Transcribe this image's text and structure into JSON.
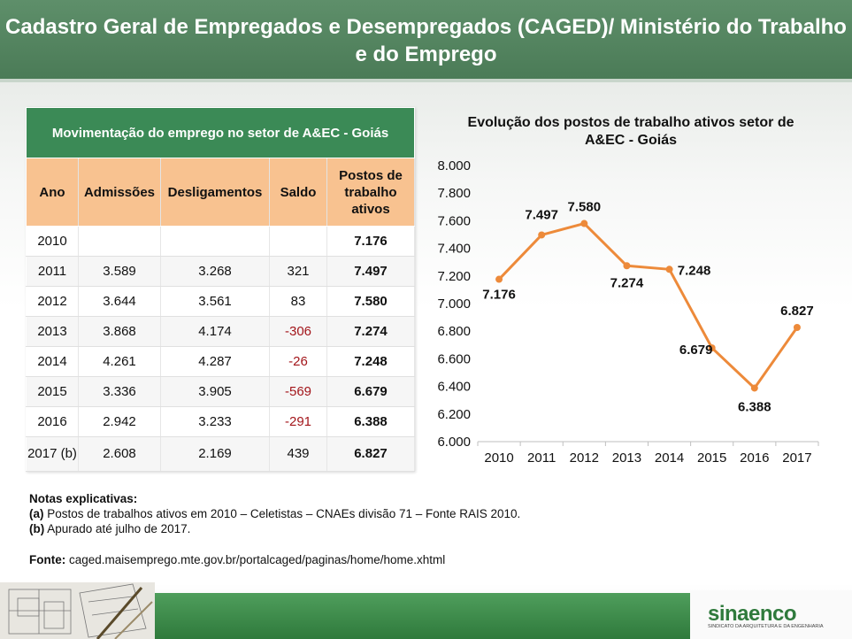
{
  "header": {
    "title": "Cadastro Geral de Empregados e Desempregados (CAGED)/ Ministério do Trabalho e do Emprego"
  },
  "table": {
    "caption": "Movimentação do emprego no setor de A&EC - Goiás",
    "columns": [
      "Ano",
      "Admissões",
      "Desligamentos",
      "Saldo",
      "Postos de trabalho ativos"
    ],
    "rows": [
      {
        "ano": "2010",
        "admissoes": "",
        "desligamentos": "",
        "saldo": "",
        "postos": "7.176"
      },
      {
        "ano": "2011",
        "admissoes": "3.589",
        "desligamentos": "3.268",
        "saldo": "321",
        "postos": "7.497"
      },
      {
        "ano": "2012",
        "admissoes": "3.644",
        "desligamentos": "3.561",
        "saldo": "83",
        "postos": "7.580"
      },
      {
        "ano": "2013",
        "admissoes": "3.868",
        "desligamentos": "4.174",
        "saldo": "-306",
        "postos": "7.274"
      },
      {
        "ano": "2014",
        "admissoes": "4.261",
        "desligamentos": "4.287",
        "saldo": "-26",
        "postos": "7.248"
      },
      {
        "ano": "2015",
        "admissoes": "3.336",
        "desligamentos": "3.905",
        "saldo": "-569",
        "postos": "6.679"
      },
      {
        "ano": "2016",
        "admissoes": "2.942",
        "desligamentos": "3.233",
        "saldo": "-291",
        "postos": "6.388"
      },
      {
        "ano": "2017 (b)",
        "admissoes": "2.608",
        "desligamentos": "2.169",
        "saldo": "439",
        "postos": "6.827"
      }
    ],
    "negative_color": "#a3161b"
  },
  "chart_data": {
    "type": "line",
    "title": "Evolução dos postos de trabalho ativos setor de A&EC - Goiás",
    "x": [
      "2010",
      "2011",
      "2012",
      "2013",
      "2014",
      "2015",
      "2016",
      "2017"
    ],
    "series": [
      {
        "values": [
          7176,
          7497,
          7580,
          7274,
          7248,
          6679,
          6388,
          6827
        ],
        "color": "#ed8a3a"
      }
    ],
    "data_labels": [
      "7.176",
      "7.497",
      "7.580",
      "7.274",
      "7.248",
      "6.679",
      "6.388",
      "6.827"
    ],
    "ylim": [
      6000,
      8000
    ],
    "yticks": [
      6000,
      6200,
      6400,
      6600,
      6800,
      7000,
      7200,
      7400,
      7600,
      7800,
      8000
    ],
    "ytick_labels": [
      "6.000",
      "6.200",
      "6.400",
      "6.600",
      "6.800",
      "7.000",
      "7.200",
      "7.400",
      "7.600",
      "7.800",
      "8.000"
    ],
    "grid": false,
    "legend": "none",
    "xlabel": "",
    "ylabel": ""
  },
  "notes": {
    "heading": "Notas explicativas:",
    "a_key": "(a)",
    "a_text": " Postos de trabalhos ativos em 2010 – Celetistas – CNAEs divisão 71 – Fonte RAIS 2010.",
    "b_key": "(b)",
    "b_text": " Apurado até julho de 2017."
  },
  "source": {
    "label": "Fonte:",
    "text": " caged.maisemprego.mte.gov.br/portalcaged/paginas/home/home.xhtml"
  },
  "footer": {
    "logo": "sinaenco",
    "logo_subtitle": "SINDICATO DA ARQUITETURA E DA ENGENHARIA",
    "brand_color": "#2f7a3c"
  }
}
